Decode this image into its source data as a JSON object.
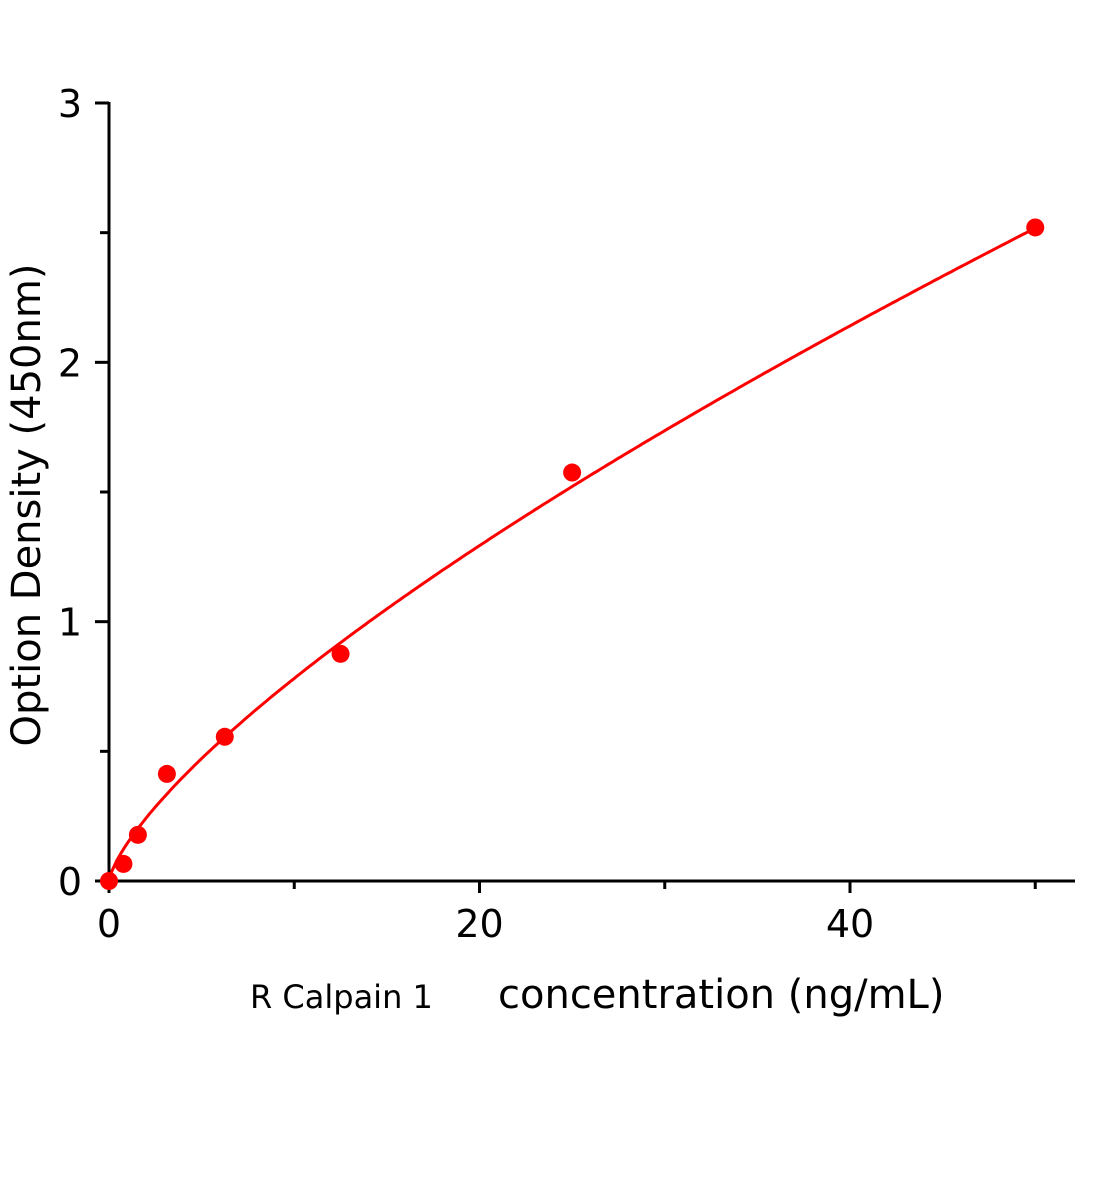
{
  "chart_data": {
    "type": "scatter",
    "xlabel_prefix": "R Calpain 1",
    "xlabel": "concentration (ng/mL)",
    "ylabel": "Option Density  (450nm)",
    "xlim": [
      0,
      52
    ],
    "ylim": [
      0,
      3
    ],
    "x_ticks": [
      0,
      20,
      40
    ],
    "x_minor_ticks": [
      10,
      30,
      50
    ],
    "y_ticks": [
      0,
      1,
      2,
      3
    ],
    "y_minor_ticks": [
      0.5,
      1.5,
      2.5
    ],
    "grid": false,
    "color": "#ff0000",
    "points": [
      {
        "x": 0,
        "y": 0
      },
      {
        "x": 0.78,
        "y": 0.066
      },
      {
        "x": 1.56,
        "y": 0.178
      },
      {
        "x": 3.125,
        "y": 0.413
      },
      {
        "x": 6.25,
        "y": 0.556
      },
      {
        "x": 12.5,
        "y": 0.876
      },
      {
        "x": 25,
        "y": 1.575
      },
      {
        "x": 50,
        "y": 2.52
      }
    ],
    "fit": {
      "type": "power",
      "a": 0.1465,
      "b": 0.727
    }
  }
}
